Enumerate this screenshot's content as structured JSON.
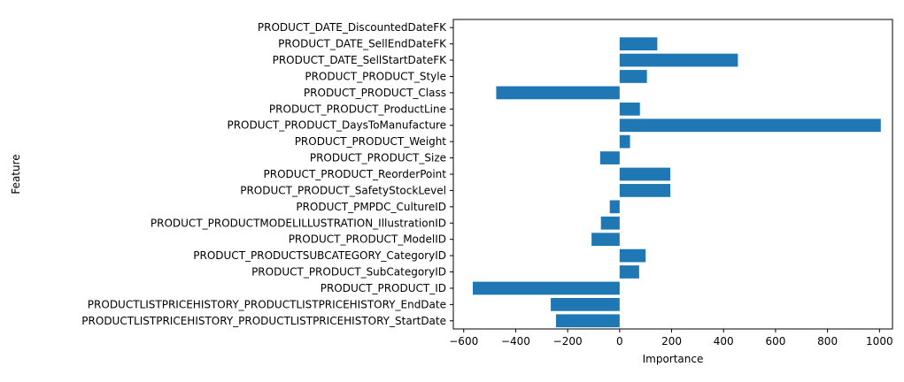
{
  "chart_data": {
    "type": "bar",
    "orientation": "horizontal",
    "xlabel": "Importance",
    "ylabel": "Feature",
    "xlim": [
      -640,
      1050
    ],
    "xticks": [
      -600,
      -400,
      -200,
      0,
      200,
      400,
      600,
      800,
      1000
    ],
    "xtick_labels": [
      "−600",
      "−400",
      "−200",
      "0",
      "200",
      "400",
      "600",
      "800",
      "1000"
    ],
    "grid": false,
    "bar_color": "#1f77b4",
    "categories": [
      "PRODUCT_DATE_DiscountedDateFK",
      "PRODUCT_DATE_SellEndDateFK",
      "PRODUCT_DATE_SellStartDateFK",
      "PRODUCT_PRODUCT_Style",
      "PRODUCT_PRODUCT_Class",
      "PRODUCT_PRODUCT_ProductLine",
      "PRODUCT_PRODUCT_DaysToManufacture",
      "PRODUCT_PRODUCT_Weight",
      "PRODUCT_PRODUCT_Size",
      "PRODUCT_PRODUCT_ReorderPoint",
      "PRODUCT_PRODUCT_SafetyStockLevel",
      "PRODUCT_PMPDC_CultureID",
      "PRODUCT_PRODUCTMODELILLUSTRATION_IllustrationID",
      "PRODUCT_PRODUCT_ModelID",
      "PRODUCT_PRODUCTSUBCATEGORY_CategoryID",
      "PRODUCT_PRODUCT_SubCategoryID",
      "PRODUCT_PRODUCT_ID",
      "PRODUCTLISTPRICEHISTORY_PRODUCTLISTPRICEHISTORY_EndDate",
      "PRODUCTLISTPRICEHISTORY_PRODUCTLISTPRICEHISTORY_StartDate"
    ],
    "values": [
      0,
      145,
      455,
      105,
      -475,
      78,
      1005,
      40,
      -75,
      195,
      195,
      -38,
      -72,
      -108,
      100,
      75,
      -565,
      -265,
      -245
    ]
  }
}
